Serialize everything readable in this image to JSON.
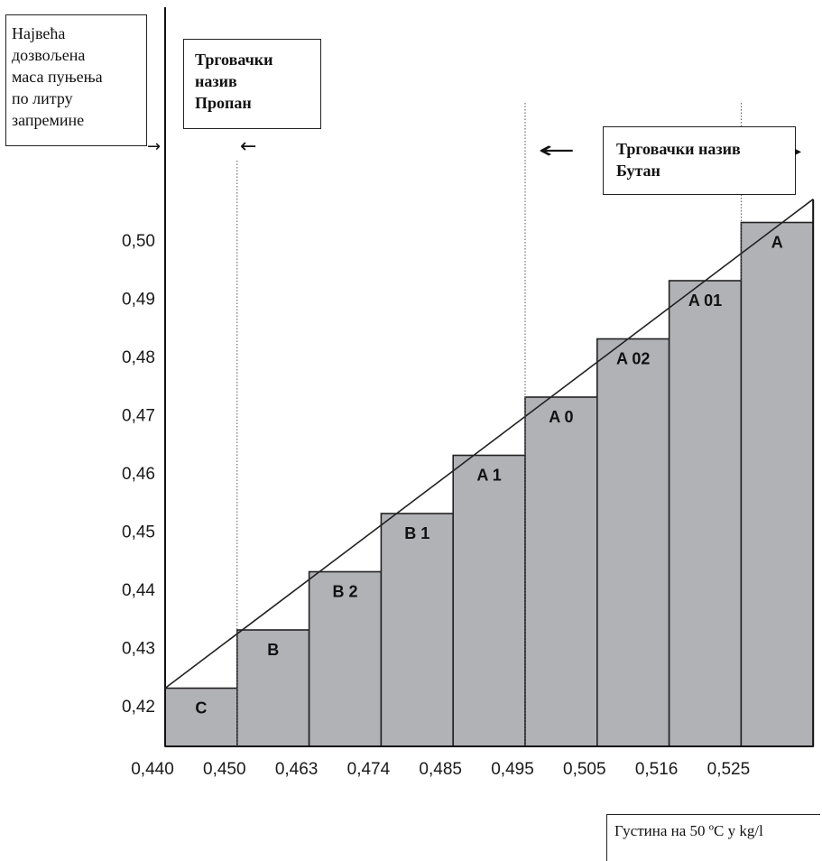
{
  "chart_data": {
    "type": "bar",
    "x_tick_labels": [
      "0,440",
      "0,450",
      "0,463",
      "0,474",
      "0,485",
      "0,495",
      "0,505",
      "0,516",
      "0,525"
    ],
    "y_tick_labels": [
      "0,42",
      "0,43",
      "0,44",
      "0,45",
      "0,46",
      "0,47",
      "0,48",
      "0,49",
      "0,50"
    ],
    "y_tick_values": [
      0.42,
      0.43,
      0.44,
      0.45,
      0.46,
      0.47,
      0.48,
      0.49,
      0.5
    ],
    "ylim": [
      0.413,
      0.51
    ],
    "bars": [
      {
        "label": "C",
        "value": 0.423
      },
      {
        "label": "B",
        "value": 0.433
      },
      {
        "label": "B 2",
        "value": 0.443
      },
      {
        "label": "B 1",
        "value": 0.453
      },
      {
        "label": "A 1",
        "value": 0.463
      },
      {
        "label": "A 0",
        "value": 0.473
      },
      {
        "label": "A 02",
        "value": 0.483
      },
      {
        "label": "A 01",
        "value": 0.493
      },
      {
        "label": "A",
        "value": 0.503
      }
    ],
    "diagonal_line": {
      "start": 0.423,
      "end": 0.507
    },
    "bar_color": "#b1b2b6",
    "ylabel_lines": [
      "Највећа",
      "дозвољена",
      "маса пуњења",
      "по литру",
      "запремине"
    ],
    "xlabel": "Густина на 50 ºC у kg/l",
    "propane_label_lines": [
      "Трговачки",
      "назив",
      "Пропан"
    ],
    "butane_label_lines": [
      "Трговачки назив",
      "Бутан"
    ]
  }
}
